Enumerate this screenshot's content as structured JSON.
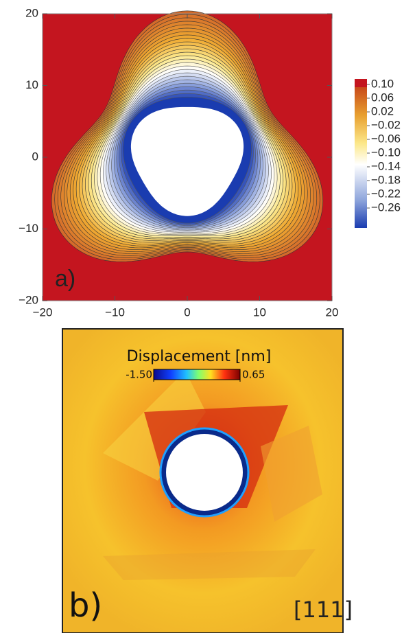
{
  "chart_data": [
    {
      "type": "contour",
      "panel_label": "a)",
      "xlim": [
        -20,
        20
      ],
      "ylim": [
        -20,
        20
      ],
      "xticks": [
        {
          "value": -20,
          "label": "−20"
        },
        {
          "value": -10,
          "label": "−10"
        },
        0,
        10,
        20
      ],
      "yticks": [
        {
          "value": -20,
          "label": "−20"
        },
        {
          "value": -10,
          "label": "−10"
        },
        0,
        10,
        20
      ],
      "colorbar_ticks": [
        {
          "value": 0.1,
          "label": "0.10"
        },
        {
          "value": 0.06,
          "label": "0.06"
        },
        {
          "value": 0.02,
          "label": "0.02"
        },
        {
          "value": -0.02,
          "label": "−0.02"
        },
        {
          "value": -0.06,
          "label": "−0.06"
        },
        {
          "value": -0.1,
          "label": "−0.10"
        },
        {
          "value": -0.14,
          "label": "−0.14"
        },
        {
          "value": -0.18,
          "label": "−0.18"
        },
        {
          "value": -0.22,
          "label": "−0.22"
        },
        {
          "value": -0.26,
          "label": "−0.26"
        }
      ]
    },
    {
      "type": "heatmap",
      "panel_label": "b)",
      "annotation": "[111]",
      "colorbar_title": "Displacement [nm]",
      "colorbar_ticks": [
        {
          "value": -1.5,
          "label": "-1.50"
        },
        0.65
      ]
    }
  ]
}
